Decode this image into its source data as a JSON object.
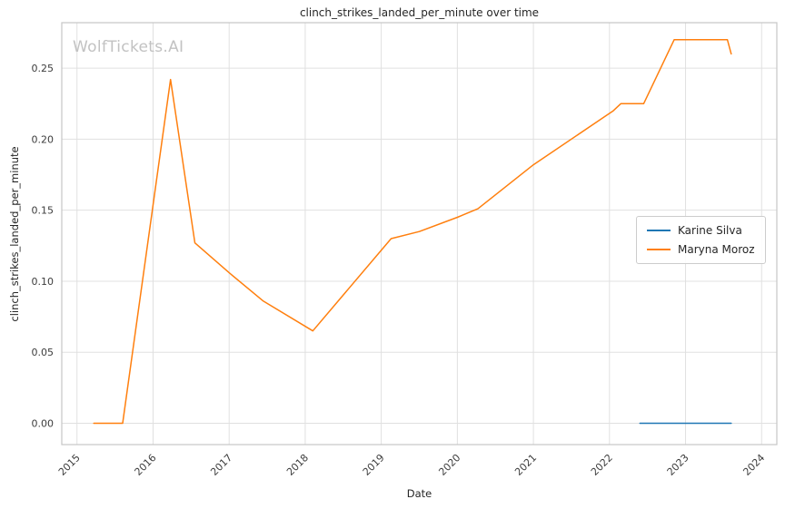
{
  "figure": {
    "watermark": "WolfTickets.AI"
  },
  "chart_data": {
    "type": "line",
    "title": "clinch_strikes_landed_per_minute over time",
    "xlabel": "Date",
    "ylabel": "clinch_strikes_landed_per_minute",
    "grid": true,
    "legend_position": "center right",
    "xlim": [
      2014.8,
      2024.2
    ],
    "ylim": [
      -0.015,
      0.282
    ],
    "xticks": {
      "values": [
        2015,
        2016,
        2017,
        2018,
        2019,
        2020,
        2021,
        2022,
        2023,
        2024
      ],
      "labels": [
        "2015",
        "2016",
        "2017",
        "2018",
        "2019",
        "2020",
        "2021",
        "2022",
        "2023",
        "2024"
      ]
    },
    "yticks": {
      "values": [
        0.0,
        0.05,
        0.1,
        0.15,
        0.2,
        0.25
      ],
      "labels": [
        "0.00",
        "0.05",
        "0.10",
        "0.15",
        "0.20",
        "0.25"
      ]
    },
    "colors": {
      "blue": "#1f77b4",
      "orange": "#ff7f0e",
      "grid": "#e0e0e0",
      "spine": "#c6c6c6"
    },
    "series": [
      {
        "name": "Karine Silva",
        "color": "#1f77b4",
        "points": [
          [
            2022.4,
            0.0
          ],
          [
            2023.6,
            0.0
          ]
        ]
      },
      {
        "name": "Maryna Moroz",
        "color": "#ff7f0e",
        "points": [
          [
            2015.22,
            0.0
          ],
          [
            2015.6,
            0.0
          ],
          [
            2016.23,
            0.242
          ],
          [
            2016.55,
            0.127
          ],
          [
            2017.0,
            0.106
          ],
          [
            2017.45,
            0.086
          ],
          [
            2018.1,
            0.065
          ],
          [
            2019.13,
            0.13
          ],
          [
            2019.5,
            0.135
          ],
          [
            2020.0,
            0.145
          ],
          [
            2020.27,
            0.151
          ],
          [
            2021.0,
            0.182
          ],
          [
            2022.05,
            0.22
          ],
          [
            2022.15,
            0.225
          ],
          [
            2022.45,
            0.225
          ],
          [
            2022.85,
            0.27
          ],
          [
            2023.5,
            0.27
          ],
          [
            2023.55,
            0.27
          ],
          [
            2023.6,
            0.26
          ]
        ]
      }
    ]
  }
}
